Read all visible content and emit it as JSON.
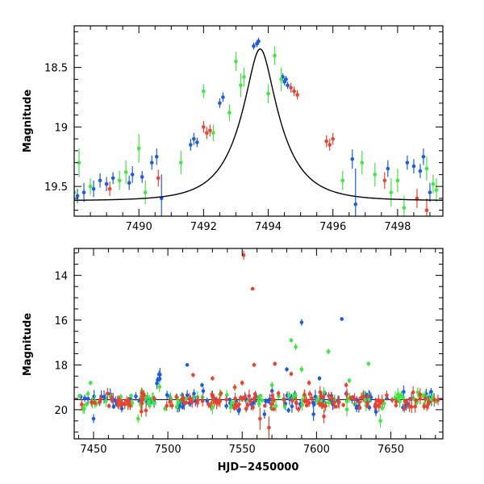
{
  "chart_data": [
    {
      "type": "scatter",
      "title": "",
      "xlabel": "",
      "ylabel": "Magnitude",
      "xlim": [
        7488.0,
        7499.4
      ],
      "ylim": [
        19.75,
        18.15
      ],
      "y_inverted": true,
      "grid": false,
      "xticks": [
        7490,
        7492,
        7494,
        7496,
        7498
      ],
      "xtick_labels": [
        "7490",
        "7492",
        "7494",
        "7496",
        "7498"
      ],
      "yticks": [
        18.5,
        19,
        19.5
      ],
      "ytick_labels": [
        "18.5",
        "19",
        "19.5"
      ],
      "colors": {
        "blue": "#1a5ce6",
        "green": "#3ee83e",
        "red": "#f0402c",
        "model": "#000000"
      },
      "model_curve": {
        "description_visible": "smooth single-lens microlensing fit",
        "t0": 7493.75,
        "tE": 1.25,
        "u0": 0.92,
        "baseline_mag": 19.62,
        "xrange": [
          7488.0,
          7499.4
        ]
      },
      "series": [
        {
          "color_key": "blue",
          "points": [
            [
              7488.1,
              19.58,
              0.06
            ],
            [
              7488.3,
              19.55,
              0.08
            ],
            [
              7488.6,
              19.52,
              0.07
            ],
            [
              7488.8,
              19.45,
              0.06
            ],
            [
              7489.0,
              19.48,
              0.06
            ],
            [
              7489.2,
              19.43,
              0.05
            ],
            [
              7489.7,
              19.47,
              0.06
            ],
            [
              7489.8,
              19.4,
              0.07
            ],
            [
              7490.1,
              19.42,
              0.05
            ],
            [
              7490.4,
              19.3,
              0.06
            ],
            [
              7490.55,
              19.25,
              0.07
            ],
            [
              7490.7,
              19.6,
              0.2
            ],
            [
              7491.6,
              19.15,
              0.05
            ],
            [
              7491.7,
              19.1,
              0.05
            ],
            [
              7491.8,
              19.13,
              0.04
            ],
            [
              7492.5,
              18.8,
              0.04
            ],
            [
              7492.6,
              18.75,
              0.04
            ],
            [
              7493.55,
              18.32,
              0.03
            ],
            [
              7493.65,
              18.3,
              0.03
            ],
            [
              7493.7,
              18.28,
              0.03
            ],
            [
              7494.45,
              18.58,
              0.03
            ],
            [
              7494.5,
              18.62,
              0.03
            ],
            [
              7494.55,
              18.6,
              0.03
            ],
            [
              7494.6,
              18.65,
              0.03
            ],
            [
              7496.6,
              19.27,
              0.08
            ],
            [
              7496.7,
              19.65,
              0.3
            ],
            [
              7497.7,
              19.35,
              0.07
            ],
            [
              7498.3,
              19.3,
              0.06
            ],
            [
              7498.5,
              19.33,
              0.06
            ],
            [
              7498.7,
              19.37,
              0.06
            ],
            [
              7498.8,
              19.25,
              0.07
            ],
            [
              7499.0,
              19.55,
              0.08
            ]
          ]
        },
        {
          "color_key": "green",
          "points": [
            [
              7488.0,
              19.55,
              0.08
            ],
            [
              7488.15,
              19.3,
              0.12
            ],
            [
              7488.5,
              19.5,
              0.07
            ],
            [
              7489.4,
              19.45,
              0.08
            ],
            [
              7489.6,
              19.38,
              0.1
            ],
            [
              7490.0,
              19.18,
              0.12
            ],
            [
              7490.2,
              19.55,
              0.1
            ],
            [
              7491.3,
              19.3,
              0.1
            ],
            [
              7492.0,
              18.7,
              0.06
            ],
            [
              7492.3,
              19.05,
              0.07
            ],
            [
              7492.8,
              18.88,
              0.07
            ],
            [
              7493.0,
              18.45,
              0.08
            ],
            [
              7493.15,
              18.65,
              0.1
            ],
            [
              7493.25,
              18.58,
              0.08
            ],
            [
              7494.0,
              18.72,
              0.08
            ],
            [
              7494.2,
              18.4,
              0.08
            ],
            [
              7494.4,
              18.6,
              0.1
            ],
            [
              7496.3,
              19.45,
              0.08
            ],
            [
              7496.9,
              19.3,
              0.1
            ],
            [
              7497.3,
              19.4,
              0.1
            ],
            [
              7497.8,
              19.55,
              0.12
            ],
            [
              7498.0,
              19.45,
              0.1
            ],
            [
              7498.2,
              19.68,
              0.1
            ],
            [
              7498.9,
              19.35,
              0.1
            ],
            [
              7499.1,
              19.48,
              0.08
            ],
            [
              7499.2,
              19.53,
              0.1
            ]
          ]
        },
        {
          "color_key": "red",
          "points": [
            [
              7489.1,
              19.52,
              0.06
            ],
            [
              7490.6,
              19.43,
              0.07
            ],
            [
              7492.0,
              19.0,
              0.05
            ],
            [
              7492.1,
              19.05,
              0.05
            ],
            [
              7492.2,
              19.03,
              0.05
            ],
            [
              7494.7,
              18.67,
              0.04
            ],
            [
              7494.8,
              18.7,
              0.04
            ],
            [
              7494.9,
              18.73,
              0.04
            ],
            [
              7495.8,
              19.12,
              0.05
            ],
            [
              7495.9,
              19.15,
              0.05
            ],
            [
              7496.0,
              19.1,
              0.05
            ],
            [
              7497.6,
              19.45,
              0.07
            ],
            [
              7498.6,
              19.6,
              0.08
            ],
            [
              7498.9,
              19.7,
              0.1
            ]
          ]
        }
      ]
    },
    {
      "type": "scatter",
      "title": "",
      "xlabel": "HJD−2450000",
      "ylabel": "Magnitude",
      "xlim": [
        7437,
        7685
      ],
      "ylim": [
        21.3,
        12.8
      ],
      "y_inverted": true,
      "grid": false,
      "xticks": [
        7450,
        7500,
        7550,
        7600,
        7650
      ],
      "xtick_labels": [
        "7450",
        "7500",
        "7550",
        "7600",
        "7650"
      ],
      "yticks": [
        14,
        16,
        18,
        20
      ],
      "ytick_labels": [
        "14",
        "16",
        "18",
        "20"
      ],
      "reference_line_mag": 19.55,
      "baseline": {
        "xrange": [
          7440,
          7683
        ],
        "mag": 19.6,
        "scatter": 0.18,
        "counts": {
          "blue": 130,
          "green": 110,
          "red": 150
        }
      },
      "event_bump": {
        "t0": 7493.75,
        "peak_mag": 18.3
      },
      "series": [
        {
          "color_key": "red",
          "points": [
            [
              7551,
              13.1,
              0.2
            ],
            [
              7557,
              14.6,
              0.05
            ],
            [
              7517,
              18.45,
              0.1
            ],
            [
              7530,
              18.6,
              0.1
            ],
            [
              7558,
              18.0,
              0.1
            ],
            [
              7572,
              17.95,
              0.1
            ],
            [
              7583,
              18.4,
              0.1
            ],
            [
              7595,
              18.8,
              0.12
            ],
            [
              7550,
              18.8,
              0.12
            ],
            [
              7545,
              19.0,
              0.15
            ],
            [
              7620,
              18.9,
              0.12
            ],
            [
              7562,
              20.4,
              0.5
            ],
            [
              7568,
              20.8,
              0.5
            ],
            [
              7605,
              20.3,
              0.3
            ]
          ]
        },
        {
          "color_key": "blue",
          "points": [
            [
              7513,
              18.0,
              0.05
            ],
            [
              7580,
              18.2,
              0.1
            ],
            [
              7590,
              16.1,
              0.15
            ],
            [
              7617,
              15.95,
              0.05
            ],
            [
              7602,
              18.6,
              0.1
            ],
            [
              7523,
              18.9,
              0.1
            ],
            [
              7450,
              20.4,
              0.2
            ],
            [
              7565,
              20.2,
              0.2
            ],
            [
              7598,
              20.2,
              0.3
            ],
            [
              7640,
              20.1,
              0.2
            ]
          ]
        },
        {
          "color_key": "green",
          "points": [
            [
              7583,
              16.9,
              0.1
            ],
            [
              7586,
              17.2,
              0.15
            ],
            [
              7608,
              17.4,
              0.12
            ],
            [
              7635,
              17.95,
              0.1
            ],
            [
              7590,
              18.2,
              0.15
            ],
            [
              7480,
              20.4,
              0.2
            ],
            [
              7643,
              20.5,
              0.3
            ],
            [
              7530,
              19.9,
              0.3
            ],
            [
              7448,
              18.8,
              0.1
            ],
            [
              7622,
              18.7,
              0.12
            ],
            [
              7570,
              18.9,
              0.15
            ]
          ]
        }
      ]
    }
  ]
}
